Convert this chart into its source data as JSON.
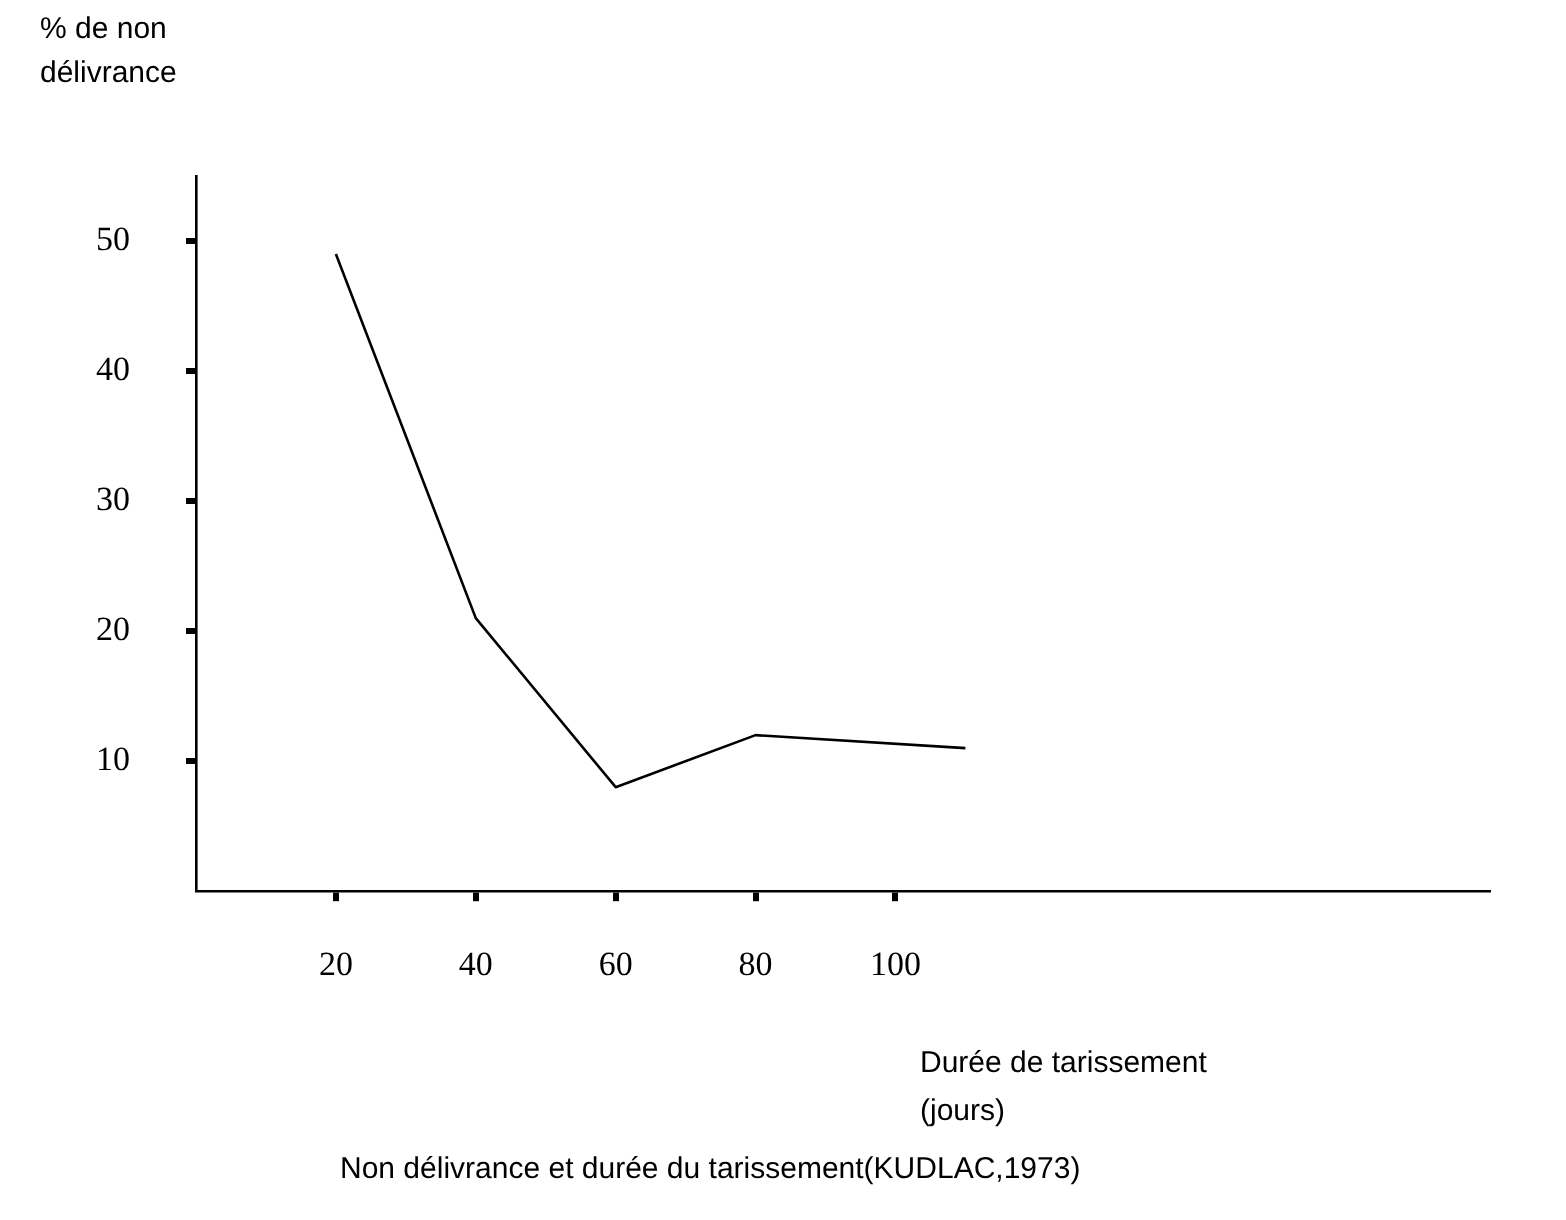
{
  "chart_data": {
    "type": "line",
    "ylabel": "% de non délivrance",
    "xlabel": "Durée de tarissement (jours)",
    "annotations": [
      "Non délivrance et durée du tarissement(KUDLAC,1973)"
    ],
    "x": [
      20,
      40,
      60,
      80,
      110
    ],
    "series": [
      {
        "color": "#000000",
        "values": [
          49,
          21,
          8,
          12,
          11
        ]
      }
    ],
    "xlim": [
      0,
      185
    ],
    "xticks": [
      20,
      40,
      60,
      80,
      100
    ],
    "ylim": [
      0,
      55
    ],
    "yticks": [
      10,
      20,
      30,
      40,
      50
    ],
    "grid": false,
    "legend": false,
    "marker": "none",
    "line_style": "solid"
  }
}
